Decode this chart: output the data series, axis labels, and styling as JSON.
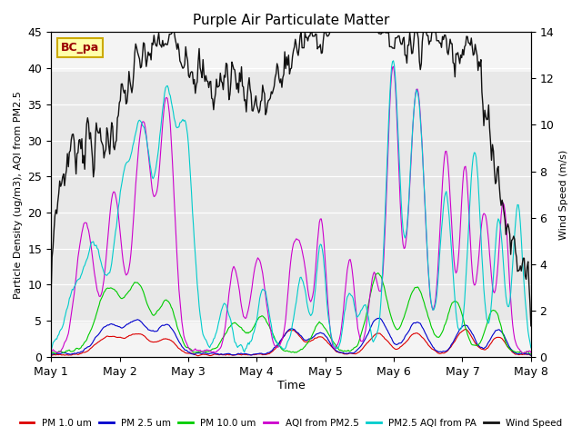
{
  "title": "Purple Air Particulate Matter",
  "ylabel_left": "Particle Density (ug/m3), AQI from PM2.5",
  "ylabel_right": "Wind Speed (m/s)",
  "xlabel": "Time",
  "ylim_left": [
    0,
    45
  ],
  "ylim_right": [
    0,
    14
  ],
  "station_label": "BC_pa",
  "xticklabels": [
    "May 1",
    "May 2",
    "May 3",
    "May 4",
    "May 5",
    "May 6",
    "May 7",
    "May 8"
  ],
  "legend_labels": [
    "PM 1.0 um",
    "PM 2.5 um",
    "PM 10.0 um",
    "AQI from PM2.5",
    "PM2.5 AQI from PA",
    "Wind Speed"
  ],
  "legend_colors": [
    "#dd0000",
    "#0000cc",
    "#00cc00",
    "#cc00cc",
    "#00cccc",
    "#111111"
  ],
  "n_points": 500,
  "random_seed": 7
}
